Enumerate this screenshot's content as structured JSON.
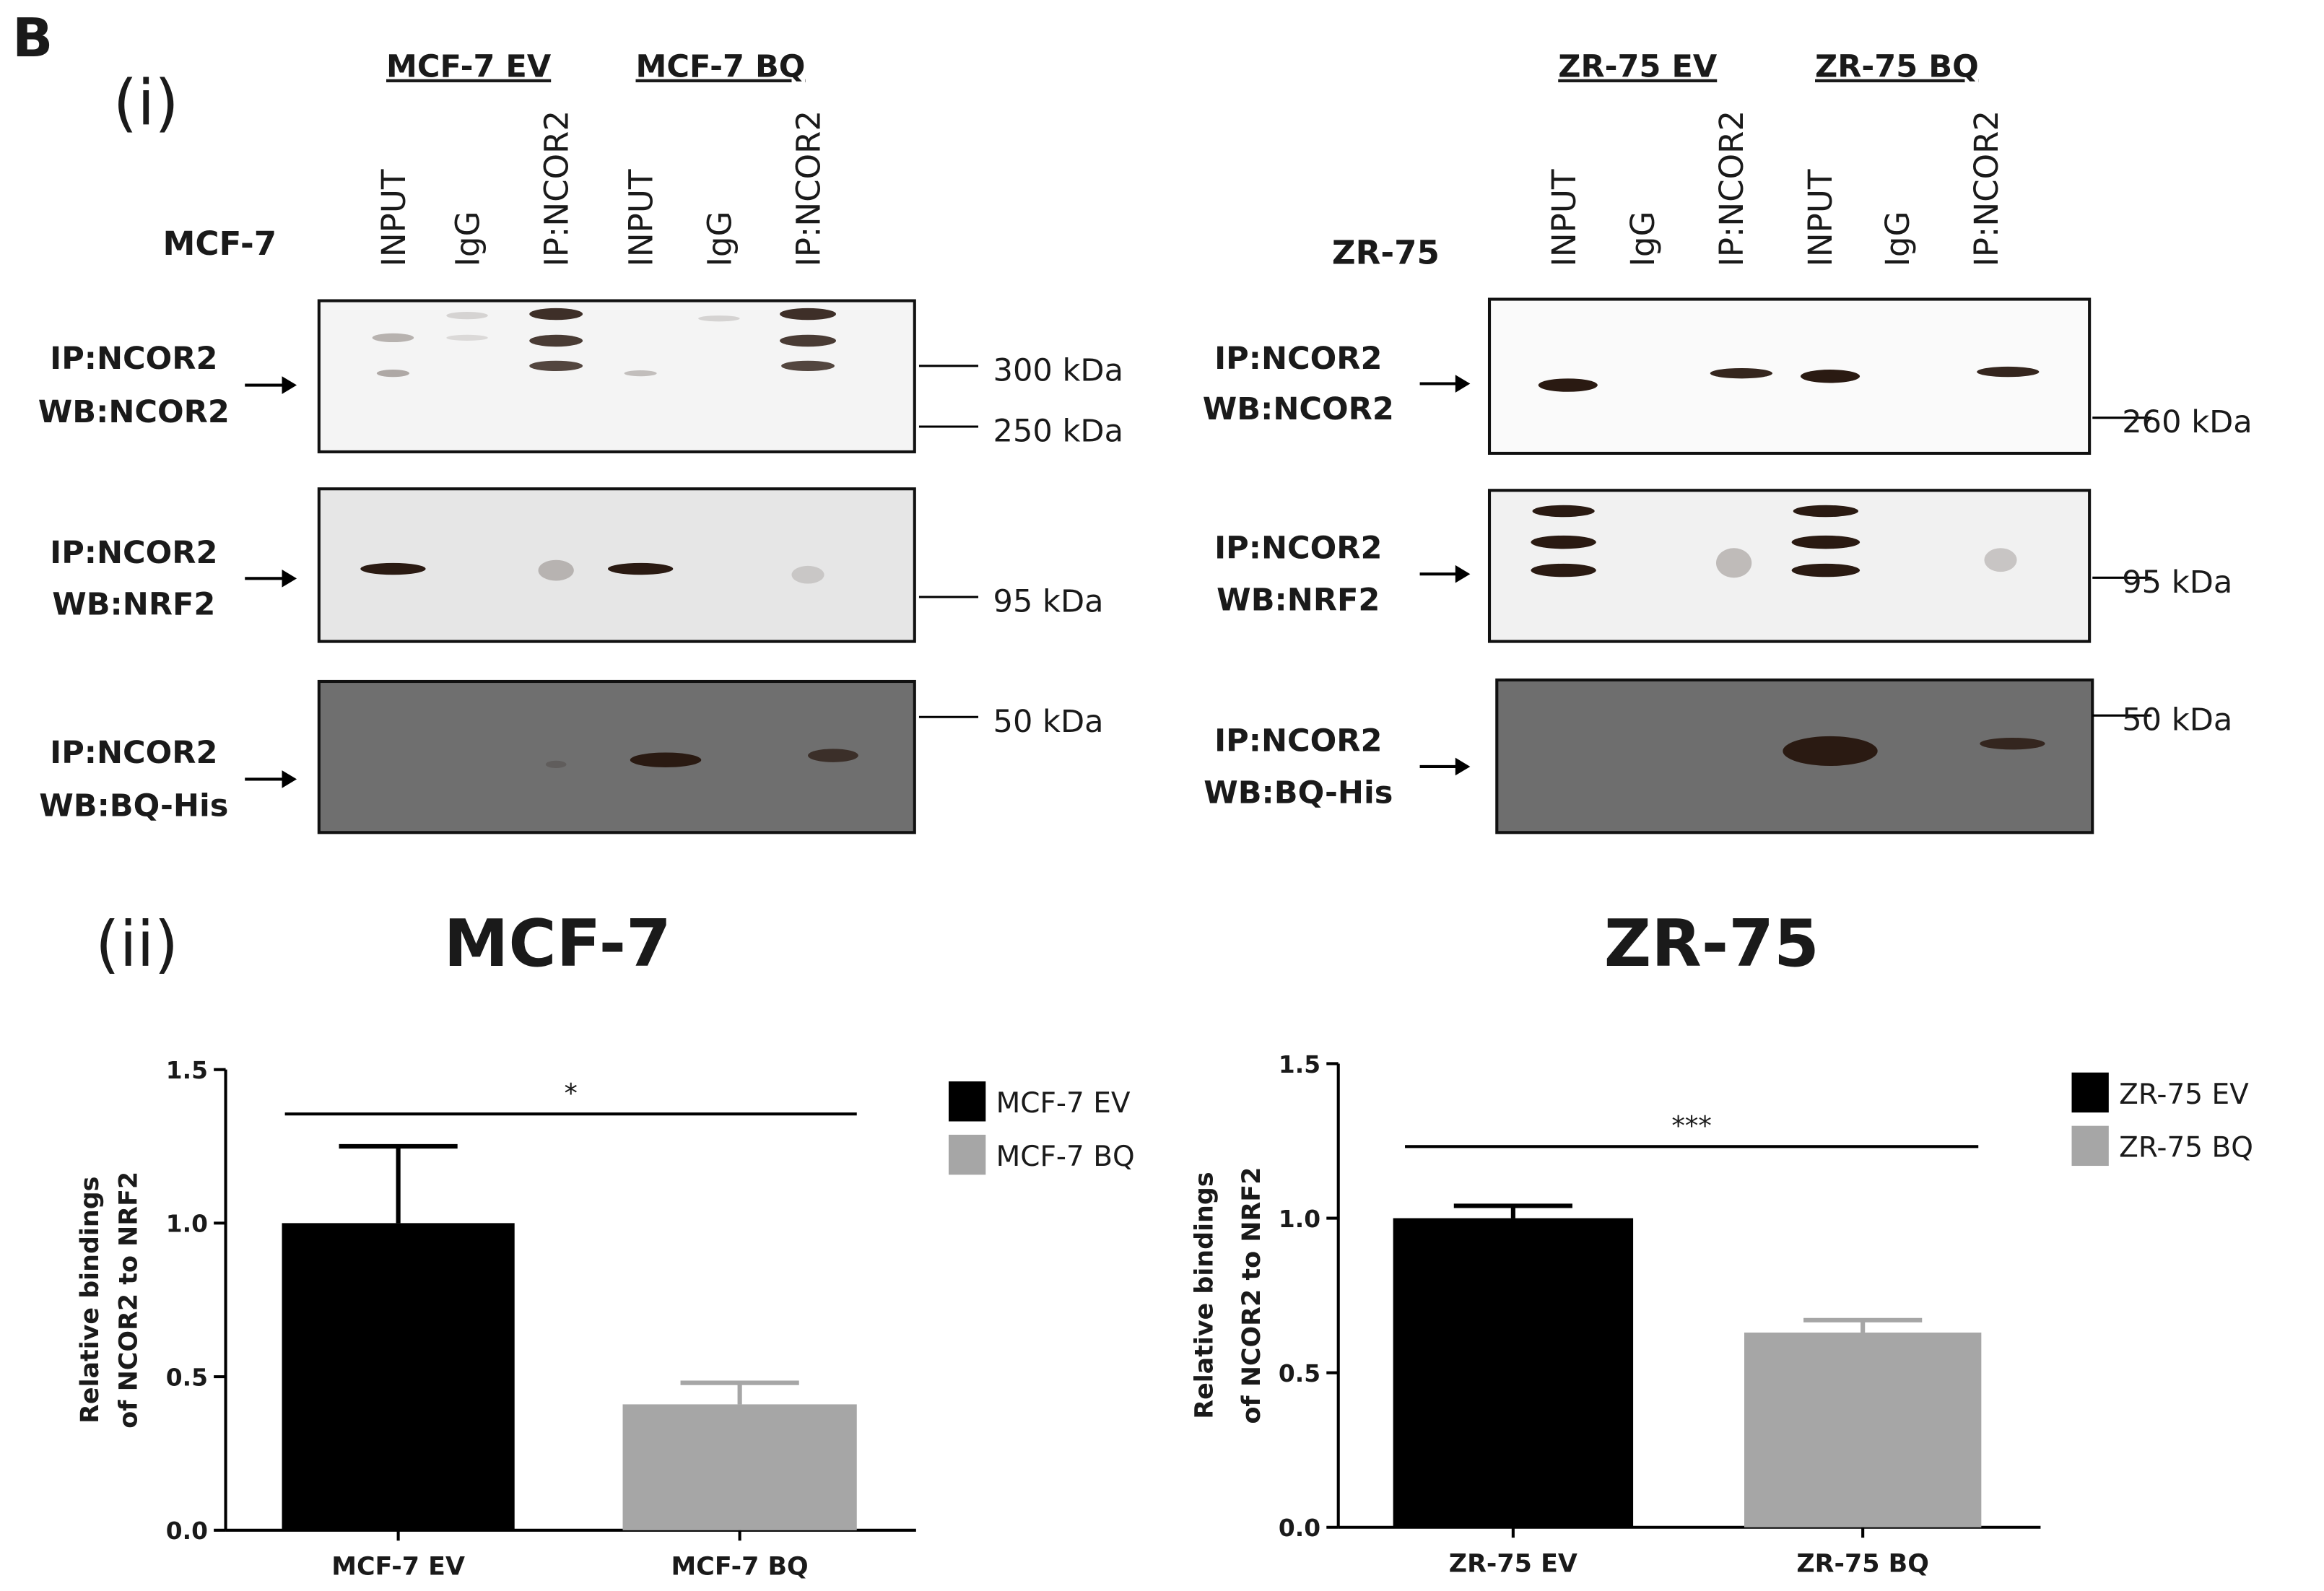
{
  "panel_label": "B",
  "section_i": "(i)",
  "section_ii": "(ii)",
  "blots": [
    {
      "cell_line": "MCF-7",
      "groups": [
        "MCF-7 EV",
        "MCF-7 BQ"
      ],
      "lanes": [
        "INPUT",
        "IgG",
        "IP:NCOR2",
        "INPUT",
        "IgG",
        "IP:NCOR2"
      ],
      "rows": [
        {
          "label": [
            "IP:NCOR2",
            "WB:NCOR2"
          ],
          "markers": [
            "300 kDa",
            "250 kDa"
          ]
        },
        {
          "label": [
            "IP:NCOR2",
            "WB:NRF2"
          ],
          "markers": [
            "95 kDa"
          ]
        },
        {
          "label": [
            "IP:NCOR2",
            "WB:BQ-His"
          ],
          "markers": [
            "50 kDa"
          ]
        }
      ]
    },
    {
      "cell_line": "ZR-75",
      "groups": [
        "ZR-75 EV",
        "ZR-75 BQ"
      ],
      "lanes": [
        "INPUT",
        "IgG",
        "IP:NCOR2",
        "INPUT",
        "IgG",
        "IP:NCOR2"
      ],
      "rows": [
        {
          "label": [
            "IP:NCOR2",
            "WB:NCOR2"
          ],
          "markers": [
            "260 kDa"
          ]
        },
        {
          "label": [
            "IP:NCOR2",
            "WB:NRF2"
          ],
          "markers": [
            "95 kDa"
          ]
        },
        {
          "label": [
            "IP:NCOR2",
            "WB:BQ-His"
          ],
          "markers": [
            "50 kDa"
          ]
        }
      ]
    }
  ],
  "chart_data": [
    {
      "type": "bar",
      "title": "MCF-7",
      "ylabel": [
        "Relative bindings",
        "of NCOR2 to NRF2"
      ],
      "categories": [
        "MCF-7 EV",
        "MCF-7 BQ"
      ],
      "values": [
        1.0,
        0.41
      ],
      "errors": [
        0.25,
        0.07
      ],
      "colors": [
        "#000000",
        "#a6a6a6"
      ],
      "ylim": [
        0,
        1.5
      ],
      "yticks": [
        {
          "value": 0,
          "label": "0.0"
        },
        0.5,
        {
          "value": 1,
          "label": "1.0"
        },
        1.5
      ],
      "annotation": "*"
    },
    {
      "type": "bar",
      "title": "ZR-75",
      "ylabel": [
        "Relative bindings",
        "of NCOR2 to NRF2"
      ],
      "categories": [
        "ZR-75 EV",
        "ZR-75 BQ"
      ],
      "values": [
        1.0,
        0.63
      ],
      "errors": [
        0.04,
        0.04
      ],
      "colors": [
        "#000000",
        "#a6a6a6"
      ],
      "ylim": [
        0,
        1.5
      ],
      "yticks": [
        {
          "value": 0,
          "label": "0.0"
        },
        0.5,
        {
          "value": 1,
          "label": "1.0"
        },
        1.5
      ],
      "annotation": "***"
    }
  ]
}
